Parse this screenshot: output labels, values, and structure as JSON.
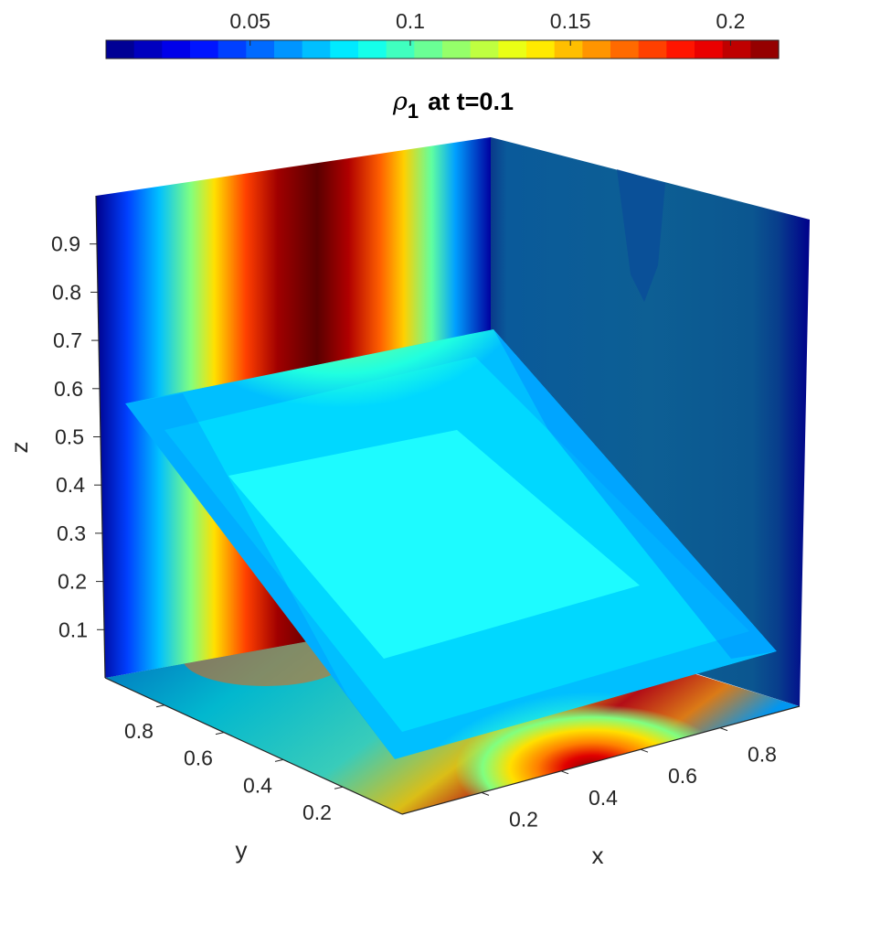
{
  "chart_data": {
    "type": "heatmap",
    "subtype": "3d-slice-contour",
    "title": {
      "symbol": "ρ",
      "subscript": "1",
      "text": "at  t=0.1"
    },
    "xlabel": "x",
    "ylabel": "y",
    "zlabel": "z",
    "x_ticks": [
      "0.2",
      "0.4",
      "0.6",
      "0.8"
    ],
    "y_ticks": [
      "0.2",
      "0.4",
      "0.6",
      "0.8"
    ],
    "z_ticks": [
      "0.1",
      "0.2",
      "0.3",
      "0.4",
      "0.5",
      "0.6",
      "0.7",
      "0.8",
      "0.9"
    ],
    "xlim": [
      0,
      1
    ],
    "ylim": [
      0,
      1
    ],
    "zlim": [
      0,
      1
    ],
    "colormap": "jet",
    "colorbar": {
      "location": "north",
      "range": [
        0.005,
        0.215
      ],
      "levels": 24,
      "ticks": [
        "0.05",
        "0.1",
        "0.15",
        "0.2"
      ]
    },
    "slices": [
      "back plane x=0",
      "back plane y=1",
      "bottom plane z=0",
      "tilted diagonal plane"
    ]
  }
}
